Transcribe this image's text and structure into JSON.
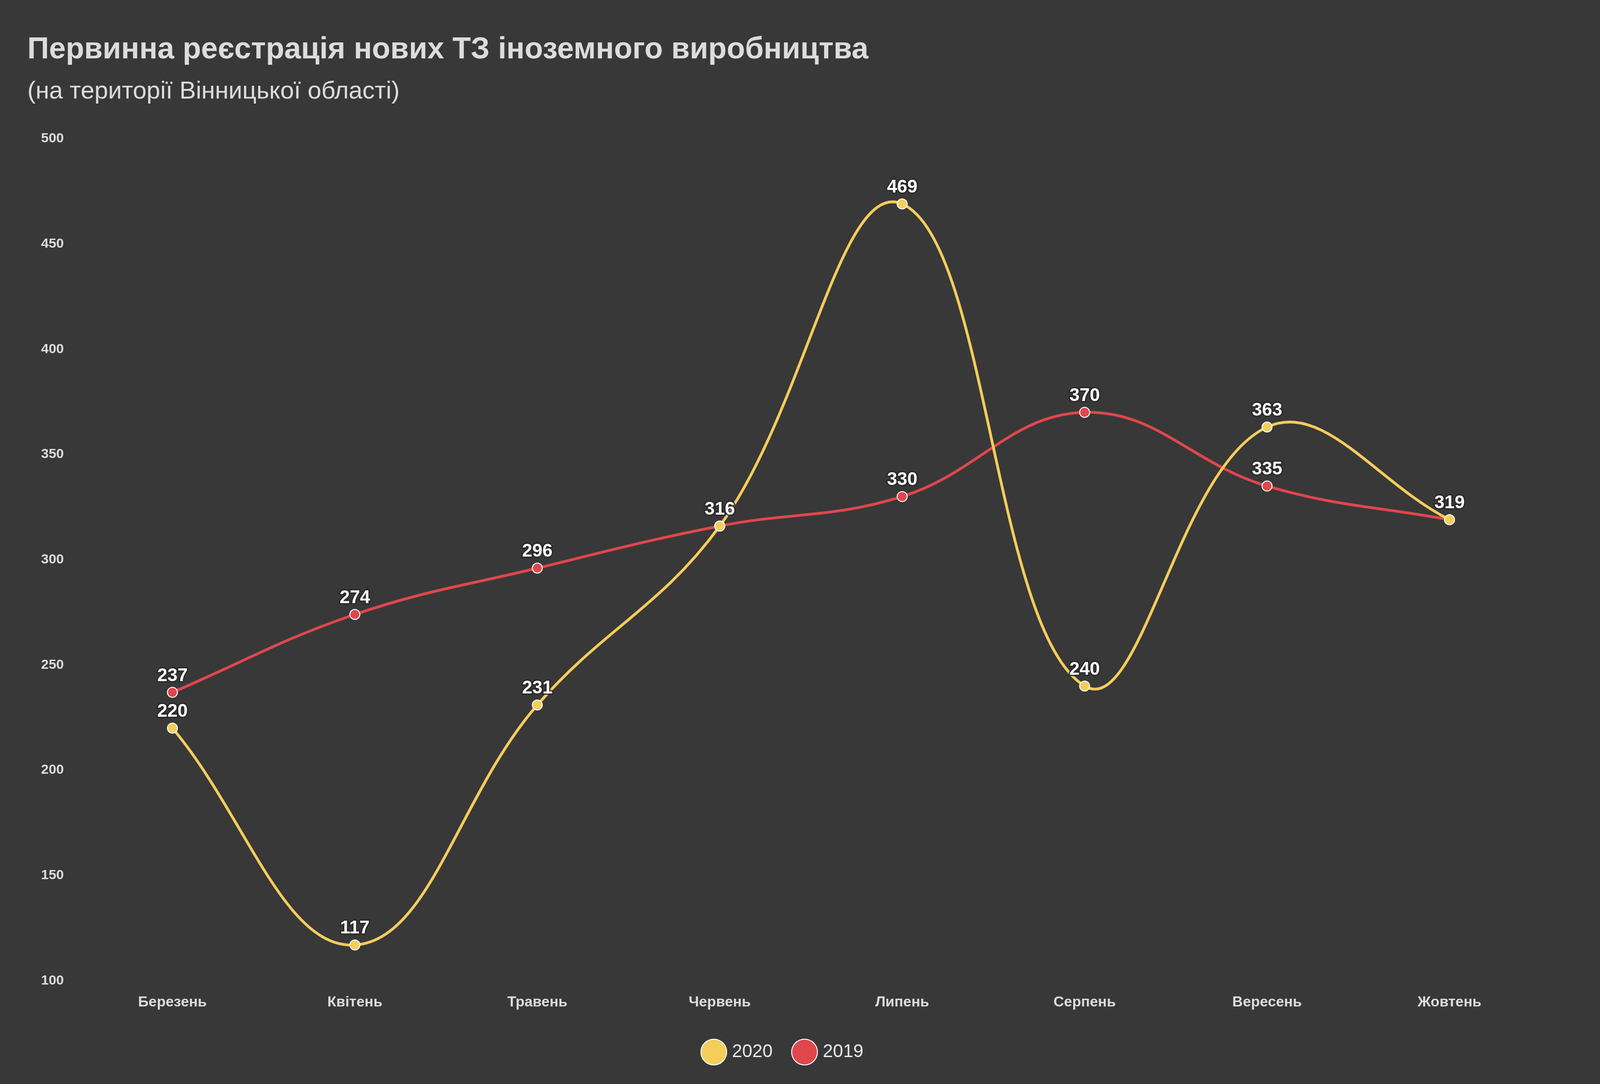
{
  "chart_data": {
    "type": "line",
    "title": "Первинна реєстрація нових ТЗ іноземного виробництва",
    "subtitle": "(на території Вінницької області)",
    "categories": [
      "Березень",
      "Квітень",
      "Травень",
      "Червень",
      "Липень",
      "Серпень",
      "Вересень",
      "Жовтень"
    ],
    "series": [
      {
        "name": "2020",
        "color": "#f5cd5b",
        "values": [
          220,
          117,
          231,
          316,
          469,
          240,
          363,
          319
        ]
      },
      {
        "name": "2019",
        "color": "#e0474c",
        "values": [
          237,
          274,
          296,
          316,
          330,
          370,
          335,
          319
        ]
      }
    ],
    "ylim": [
      100,
      500
    ],
    "yticks": [
      100,
      150,
      200,
      250,
      300,
      350,
      400,
      450,
      500
    ],
    "grid": false,
    "legend": "bottom",
    "data_labels": true,
    "marker": "circle"
  }
}
